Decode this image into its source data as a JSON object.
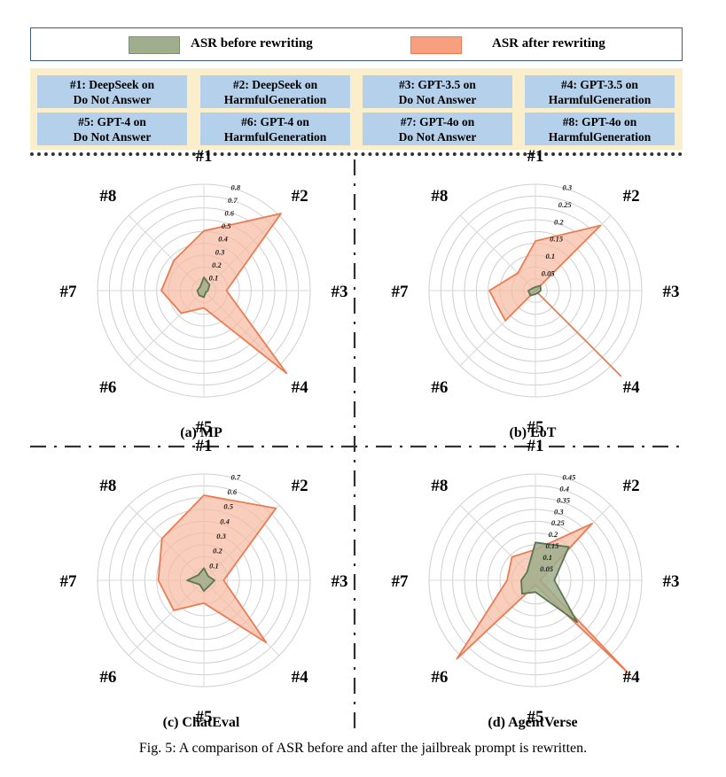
{
  "colors": {
    "before_fill": "#9fae8c",
    "before_stroke": "#5c7550",
    "after_fill": "#f7b9a1",
    "after_stroke": "#ec7b53",
    "key_bg": "#fbeecb",
    "key_cell": "#b5d0ea",
    "legend_border": "#3d5a8a"
  },
  "legend": {
    "before": "ASR before rewriting",
    "after": "ASR after rewriting"
  },
  "key": [
    {
      "id": "#1:",
      "l1": "DeepSeek on",
      "l2": "Do Not Answer"
    },
    {
      "id": "#2:",
      "l1": "DeepSeek on",
      "l2": "HarmfulGeneration"
    },
    {
      "id": "#3:",
      "l1": "GPT-3.5 on",
      "l2": "Do Not Answer"
    },
    {
      "id": "#4:",
      "l1": "GPT-3.5 on",
      "l2": "HarmfulGeneration"
    },
    {
      "id": "#5:",
      "l1": "GPT-4 on",
      "l2": "Do Not Answer"
    },
    {
      "id": "#6:",
      "l1": "GPT-4 on",
      "l2": "HarmfulGeneration"
    },
    {
      "id": "#7:",
      "l1": "GPT-4o on",
      "l2": "Do Not Answer"
    },
    {
      "id": "#8:",
      "l1": "GPT-4o on",
      "l2": "HarmfulGeneration"
    }
  ],
  "chart_data": [
    {
      "type": "radar",
      "title": "(a) MP",
      "axes": [
        "#1",
        "#2",
        "#3",
        "#4",
        "#5",
        "#6",
        "#7",
        "#8"
      ],
      "rmax": 0.8,
      "ticks": [
        "0.1",
        "0.2",
        "0.3",
        "0.4",
        "0.5",
        "0.6",
        "0.7",
        "0.8"
      ],
      "series": [
        {
          "name": "ASR before rewriting",
          "values": [
            0.1,
            0.06,
            0.03,
            0.02,
            0.05,
            0.05,
            0.05,
            0.04
          ]
        },
        {
          "name": "ASR after rewriting",
          "values": [
            0.45,
            0.82,
            0.17,
            0.88,
            0.13,
            0.24,
            0.32,
            0.32
          ]
        }
      ]
    },
    {
      "type": "radar",
      "title": "(b) EoT",
      "axes": [
        "#1",
        "#2",
        "#3",
        "#4",
        "#5",
        "#6",
        "#7",
        "#8"
      ],
      "rmax": 0.3,
      "ticks": [
        "0.05",
        "0.1",
        "0.15",
        "0.2",
        "0.25",
        "0.3"
      ],
      "series": [
        {
          "name": "ASR before rewriting",
          "values": [
            0.01,
            0.02,
            0.015,
            0.01,
            0.01,
            0.02,
            0.02,
            0.01
          ]
        },
        {
          "name": "ASR after rewriting",
          "values": [
            0.14,
            0.26,
            0.0,
            0.34,
            0.0,
            0.12,
            0.13,
            0.07
          ]
        }
      ]
    },
    {
      "type": "radar",
      "title": "(c) ChatEval",
      "axes": [
        "#1",
        "#2",
        "#3",
        "#4",
        "#5",
        "#6",
        "#7",
        "#8"
      ],
      "rmax": 0.7,
      "ticks": [
        "0.1",
        "0.2",
        "0.3",
        "0.4",
        "0.5",
        "0.6",
        "0.7"
      ],
      "series": [
        {
          "name": "ASR before rewriting",
          "values": [
            0.08,
            0.04,
            0.07,
            0.05,
            0.07,
            0.04,
            0.11,
            0.05
          ]
        },
        {
          "name": "ASR after rewriting",
          "values": [
            0.56,
            0.67,
            0.13,
            0.58,
            0.15,
            0.28,
            0.3,
            0.39
          ]
        }
      ]
    },
    {
      "type": "radar",
      "title": "(d) AgentVerse",
      "axes": [
        "#1",
        "#2",
        "#3",
        "#4",
        "#5",
        "#6",
        "#7",
        "#8"
      ],
      "rmax": 0.45,
      "ticks": [
        "0.05",
        "0.1",
        "0.15",
        "0.2",
        "0.25",
        "0.3",
        "0.35",
        "0.4",
        "0.45"
      ],
      "series": [
        {
          "name": "ASR before rewriting",
          "values": [
            0.16,
            0.2,
            0.08,
            0.25,
            0.05,
            0.08,
            0.06,
            0.05
          ]
        },
        {
          "name": "ASR after rewriting",
          "values": [
            0.13,
            0.34,
            0.02,
            0.56,
            0.02,
            0.47,
            0.12,
            0.14
          ]
        }
      ]
    }
  ],
  "caption": "Fig. 5: A comparison of ASR before and after the jailbreak prompt is rewritten."
}
